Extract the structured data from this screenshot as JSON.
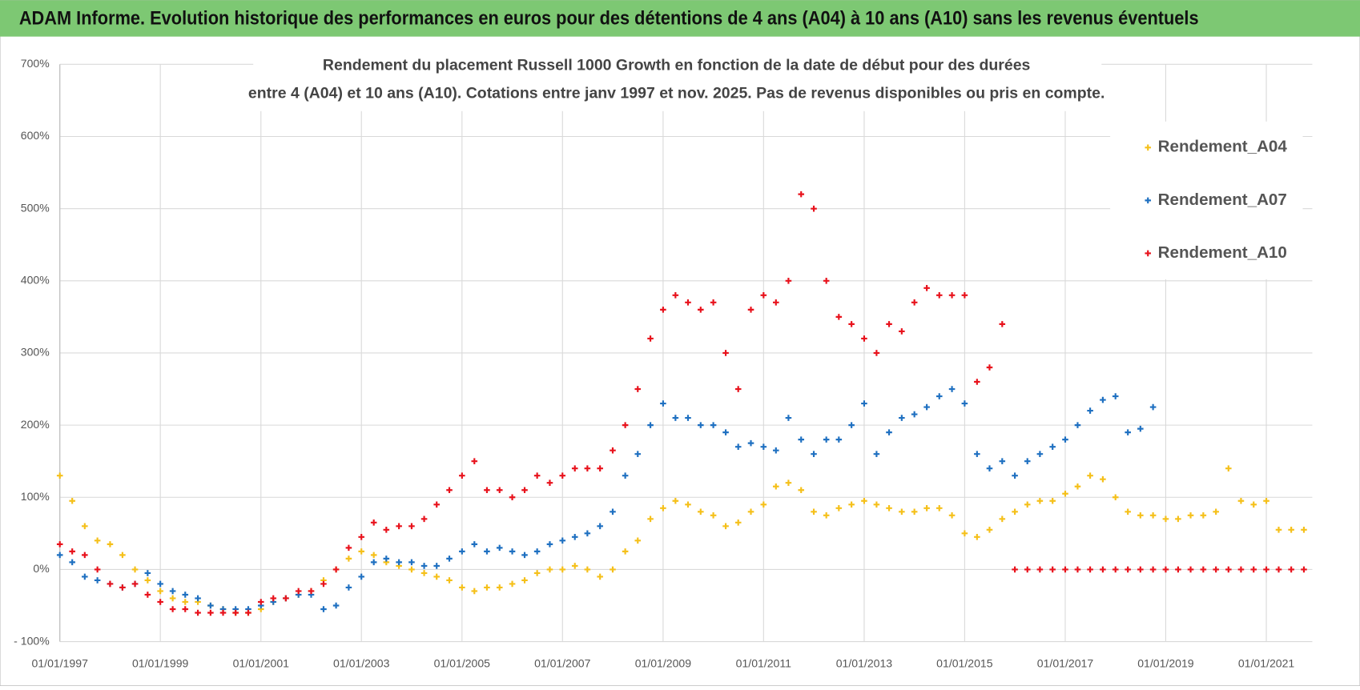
{
  "header": {
    "title": "ADAM Informe. Evolution historique des performances en euros pour des détentions de 4 ans (A04) à 10 ans (A10) sans les revenus éventuels"
  },
  "chart_data": {
    "type": "scatter",
    "title": [
      "Rendement du placement Russell 1000 Growth en fonction de la date de début pour des durées",
      "entre 4 (A04) et 10 ans (A10). Cotations entre janv 1997 et nov. 2025. Pas de revenus disponibles ou pris en compte."
    ],
    "x": [
      "1997-01-01",
      "1997-04-01",
      "1997-07-01",
      "1997-10-01",
      "1998-01-01",
      "1998-04-01",
      "1998-07-01",
      "1998-10-01",
      "1999-01-01",
      "1999-04-01",
      "1999-07-01",
      "1999-10-01",
      "2000-01-01",
      "2000-04-01",
      "2000-07-01",
      "2000-10-01",
      "2001-01-01",
      "2001-04-01",
      "2001-07-01",
      "2001-10-01",
      "2002-01-01",
      "2002-04-01",
      "2002-07-01",
      "2002-10-01",
      "2003-01-01",
      "2003-04-01",
      "2003-07-01",
      "2003-10-01",
      "2004-01-01",
      "2004-04-01",
      "2004-07-01",
      "2004-10-01",
      "2005-01-01",
      "2005-04-01",
      "2005-07-01",
      "2005-10-01",
      "2006-01-01",
      "2006-04-01",
      "2006-07-01",
      "2006-10-01",
      "2007-01-01",
      "2007-04-01",
      "2007-07-01",
      "2007-10-01",
      "2008-01-01",
      "2008-04-01",
      "2008-07-01",
      "2008-10-01",
      "2009-01-01",
      "2009-04-01",
      "2009-07-01",
      "2009-10-01",
      "2010-01-01",
      "2010-04-01",
      "2010-07-01",
      "2010-10-01",
      "2011-01-01",
      "2011-04-01",
      "2011-07-01",
      "2011-10-01",
      "2012-01-01",
      "2012-04-01",
      "2012-07-01",
      "2012-10-01",
      "2013-01-01",
      "2013-04-01",
      "2013-07-01",
      "2013-10-01",
      "2014-01-01",
      "2014-04-01",
      "2014-07-01",
      "2014-10-01",
      "2015-01-01",
      "2015-04-01",
      "2015-07-01",
      "2015-10-01",
      "2016-01-01",
      "2016-04-01",
      "2016-07-01",
      "2016-10-01",
      "2017-01-01",
      "2017-04-01",
      "2017-07-01",
      "2017-10-01",
      "2018-01-01",
      "2018-04-01",
      "2018-07-01",
      "2018-10-01",
      "2019-01-01",
      "2019-04-01",
      "2019-07-01",
      "2019-10-01",
      "2020-01-01",
      "2020-04-01",
      "2020-07-01",
      "2020-10-01",
      "2021-01-01",
      "2021-04-01",
      "2021-07-01",
      "2021-10-01"
    ],
    "series": [
      {
        "name": "Rendement_A04",
        "color": "#f5c01a",
        "values": [
          130,
          95,
          60,
          40,
          35,
          20,
          0,
          -15,
          -30,
          -40,
          -45,
          -45,
          -50,
          -55,
          -60,
          -60,
          -55,
          -45,
          -40,
          -35,
          -30,
          -15,
          0,
          15,
          25,
          20,
          10,
          5,
          0,
          -5,
          -10,
          -15,
          -25,
          -30,
          -25,
          -25,
          -20,
          -15,
          -5,
          0,
          0,
          5,
          0,
          -10,
          0,
          25,
          40,
          70,
          85,
          95,
          90,
          80,
          75,
          60,
          65,
          80,
          90,
          115,
          120,
          110,
          80,
          75,
          85,
          90,
          95,
          90,
          85,
          80,
          80,
          85,
          85,
          75,
          50,
          45,
          55,
          70,
          80,
          90,
          95,
          95,
          105,
          115,
          130,
          125,
          100,
          80,
          75,
          75,
          70,
          70,
          75,
          75,
          80,
          140,
          95,
          90,
          95,
          55,
          55,
          55
        ]
      },
      {
        "name": "Rendement_A07",
        "color": "#1f70c1",
        "values": [
          20,
          10,
          -10,
          -15,
          -20,
          -25,
          -20,
          -5,
          -20,
          -30,
          -35,
          -40,
          -50,
          -55,
          -55,
          -55,
          -50,
          -45,
          -40,
          -35,
          -35,
          -55,
          -50,
          -25,
          -10,
          10,
          15,
          10,
          10,
          5,
          5,
          15,
          25,
          35,
          25,
          30,
          25,
          20,
          25,
          35,
          40,
          45,
          50,
          60,
          80,
          130,
          160,
          200,
          230,
          210,
          210,
          200,
          200,
          190,
          170,
          175,
          170,
          165,
          210,
          180,
          160,
          180,
          180,
          200,
          230,
          160,
          190,
          210,
          215,
          225,
          240,
          250,
          230,
          160,
          140,
          150,
          130,
          150,
          160,
          170,
          180,
          200,
          220,
          235,
          240,
          190,
          195,
          225,
          null,
          null,
          null,
          null,
          null,
          null,
          null,
          null,
          null,
          null,
          null,
          null
        ]
      },
      {
        "name": "Rendement_A10",
        "color": "#e8121c",
        "values": [
          35,
          25,
          20,
          0,
          -20,
          -25,
          -20,
          -35,
          -45,
          -55,
          -55,
          -60,
          -60,
          -60,
          -60,
          -60,
          -45,
          -40,
          -40,
          -30,
          -30,
          -20,
          0,
          30,
          45,
          65,
          55,
          60,
          60,
          70,
          90,
          110,
          130,
          150,
          110,
          110,
          100,
          110,
          130,
          120,
          130,
          140,
          140,
          140,
          165,
          200,
          250,
          320,
          360,
          380,
          370,
          360,
          370,
          300,
          250,
          360,
          380,
          370,
          400,
          520,
          500,
          400,
          350,
          340,
          320,
          300,
          340,
          330,
          370,
          390,
          380,
          380,
          380,
          260,
          280,
          340,
          0,
          0,
          0,
          0,
          0,
          0,
          0,
          0,
          0,
          0,
          0,
          0,
          0,
          0,
          0,
          0,
          0,
          0,
          0,
          0,
          0,
          0,
          0,
          0
        ]
      }
    ],
    "xlim": [
      "1997-01-01",
      "2021-12-01"
    ],
    "xticks": [
      {
        "value": "1997-01-01",
        "label": "01/01/1997"
      },
      {
        "value": "1999-01-01",
        "label": "01/01/1999"
      },
      {
        "value": "2001-01-01",
        "label": "01/01/2001"
      },
      {
        "value": "2003-01-01",
        "label": "01/01/2003"
      },
      {
        "value": "2005-01-01",
        "label": "01/01/2005"
      },
      {
        "value": "2007-01-01",
        "label": "01/01/2007"
      },
      {
        "value": "2009-01-01",
        "label": "01/01/2009"
      },
      {
        "value": "2011-01-01",
        "label": "01/01/2011"
      },
      {
        "value": "2013-01-01",
        "label": "01/01/2013"
      },
      {
        "value": "2015-01-01",
        "label": "01/01/2015"
      },
      {
        "value": "2017-01-01",
        "label": "01/01/2017"
      },
      {
        "value": "2019-01-01",
        "label": "01/01/2019"
      },
      {
        "value": "2021-01-01",
        "label": "01/01/2021"
      }
    ],
    "ylim": [
      -100,
      700
    ],
    "yticks": [
      {
        "value": -100,
        "label": "- 100%"
      },
      {
        "value": 0,
        "label": "0%"
      },
      {
        "value": 100,
        "label": "100%"
      },
      {
        "value": 200,
        "label": "200%"
      },
      {
        "value": 300,
        "label": "300%"
      },
      {
        "value": 400,
        "label": "400%"
      },
      {
        "value": 500,
        "label": "500%"
      },
      {
        "value": 600,
        "label": "600%"
      },
      {
        "value": 700,
        "label": "700%"
      }
    ],
    "grid": true,
    "legend": "upper right"
  }
}
